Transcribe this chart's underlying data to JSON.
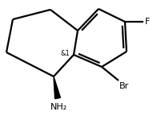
{
  "background_color": "#ffffff",
  "line_color": "#000000",
  "line_width": 1.6,
  "f_label": "F",
  "br_label": "Br",
  "nh2_label": "NH₂",
  "stereo_label": "&1",
  "label_fontsize": 8,
  "stereo_fontsize": 6
}
